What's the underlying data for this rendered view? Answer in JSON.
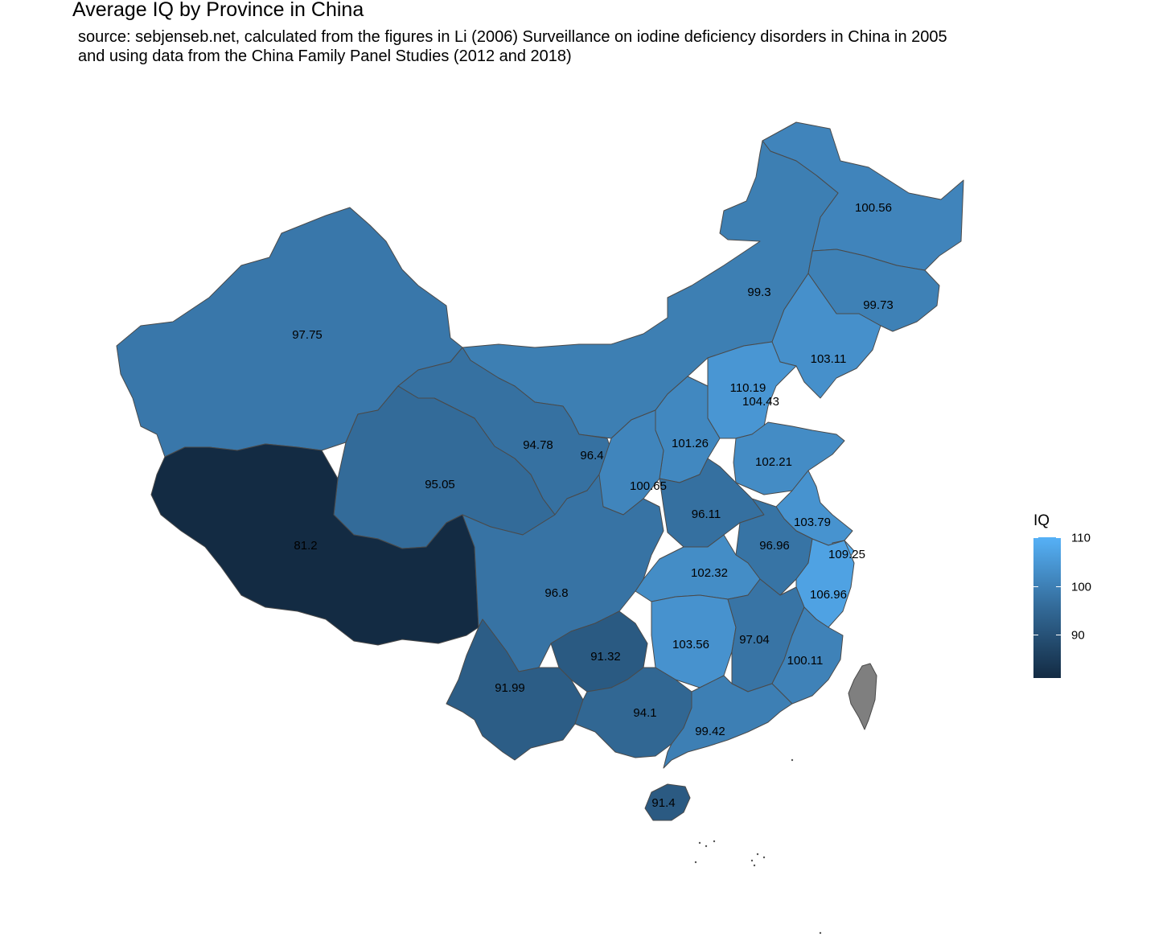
{
  "title": "Average IQ by Province in China",
  "subtitle_lines": [
    "source: sebjenseb.net, calculated from the figures in Li (2006) Surveillance on iodine deficiency disorders in China in 2005",
    "and using data from the China Family Panel Studies (2012 and 2018)"
  ],
  "legend": {
    "title": "IQ",
    "ticks": [
      "110",
      "100",
      "90"
    ],
    "tick_values": [
      110,
      100,
      90
    ],
    "range": [
      81.2,
      110.19
    ],
    "color_low": "#132b43",
    "color_high": "#56b1f7"
  },
  "no_data_color": "#7f7f7f",
  "chart_data": {
    "type": "choropleth",
    "value_name": "IQ",
    "values": [
      {
        "label": "100.56",
        "value": 100.56
      },
      {
        "label": "99.3",
        "value": 99.3
      },
      {
        "label": "99.73",
        "value": 99.73
      },
      {
        "label": "103.11",
        "value": 103.11
      },
      {
        "label": "110.19",
        "value": 110.19
      },
      {
        "label": "104.43",
        "value": 104.43
      },
      {
        "label": "101.26",
        "value": 101.26
      },
      {
        "label": "102.21",
        "value": 102.21
      },
      {
        "label": "97.75",
        "value": 97.75
      },
      {
        "label": "94.78",
        "value": 94.78
      },
      {
        "label": "96.4",
        "value": 96.4
      },
      {
        "label": "100.65",
        "value": 100.65
      },
      {
        "label": "95.05",
        "value": 95.05
      },
      {
        "label": "81.2",
        "value": 81.2
      },
      {
        "label": "96.11",
        "value": 96.11
      },
      {
        "label": "103.79",
        "value": 103.79
      },
      {
        "label": "96.96",
        "value": 96.96
      },
      {
        "label": "109.25",
        "value": 109.25
      },
      {
        "label": "102.32",
        "value": 102.32
      },
      {
        "label": "106.96",
        "value": 106.96
      },
      {
        "label": "96.8",
        "value": 96.8
      },
      {
        "label": "103.56",
        "value": 103.56
      },
      {
        "label": "97.04",
        "value": 97.04
      },
      {
        "label": "100.11",
        "value": 100.11
      },
      {
        "label": "91.32",
        "value": 91.32
      },
      {
        "label": "91.99",
        "value": 91.99
      },
      {
        "label": "94.1",
        "value": 94.1
      },
      {
        "label": "99.42",
        "value": 99.42
      },
      {
        "label": "91.4",
        "value": 91.4
      },
      {
        "label": "",
        "value": null
      }
    ]
  }
}
